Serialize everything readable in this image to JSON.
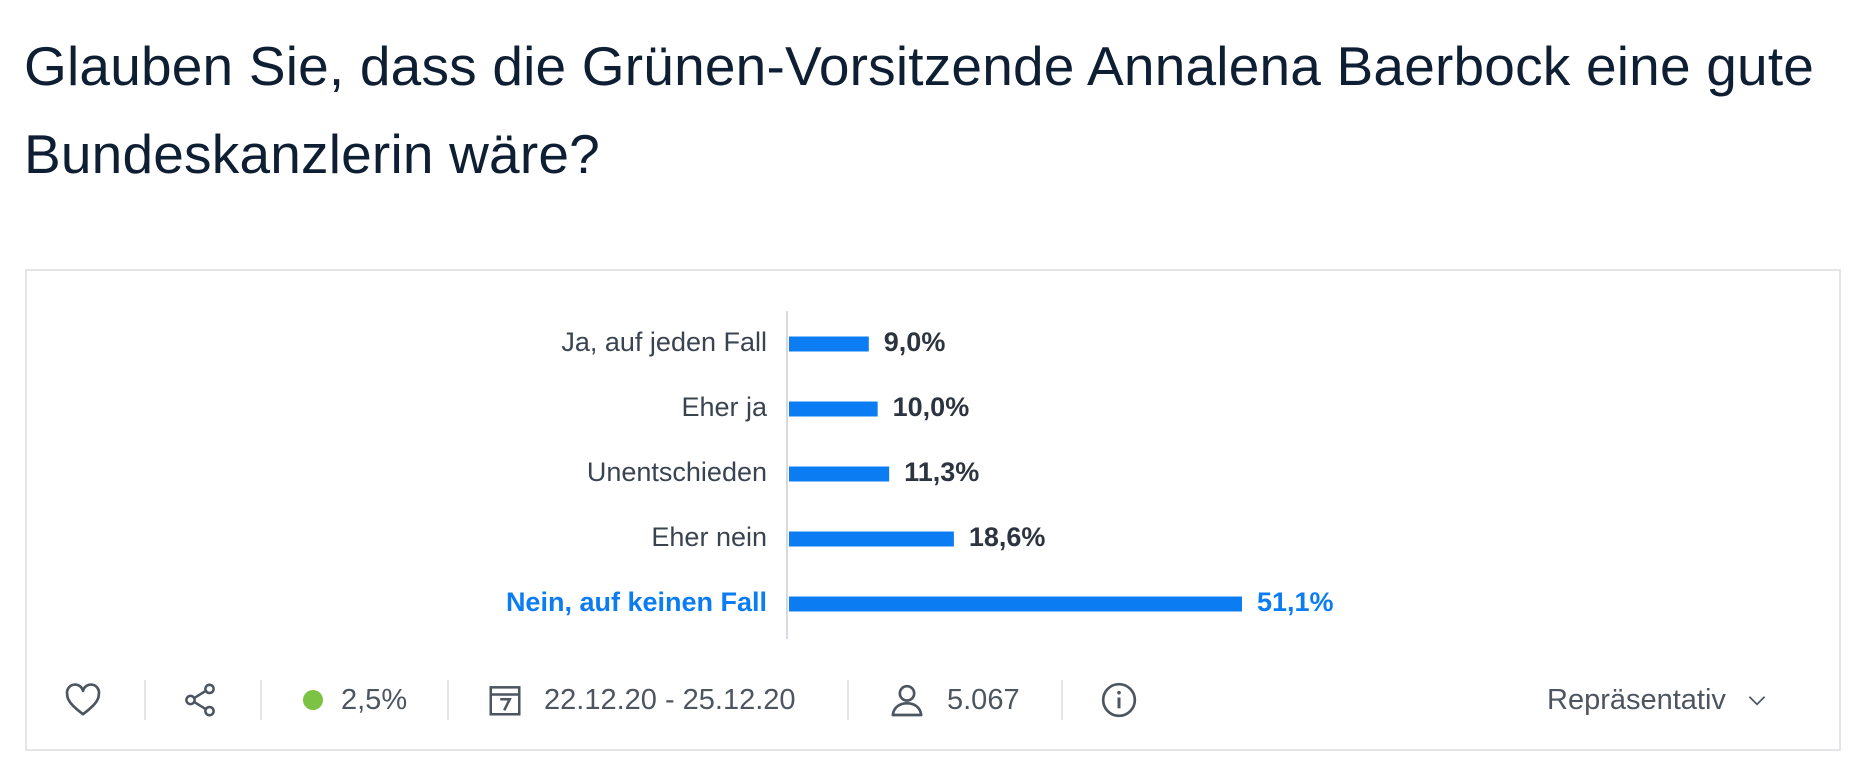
{
  "title": "Glauben Sie, dass die Grünen-Vorsitzende Annalena Baerbock eine gute Bundeskanzlerin wäre?",
  "chart_data": {
    "type": "bar",
    "orientation": "horizontal",
    "categories": [
      "Ja, auf jeden Fall",
      "Eher ja",
      "Unentschieden",
      "Eher nein",
      "Nein, auf keinen Fall"
    ],
    "values": [
      9.0,
      10.0,
      11.3,
      18.6,
      51.1
    ],
    "value_labels": [
      "9,0%",
      "10,0%",
      "11,3%",
      "18,6%",
      "51,1%"
    ],
    "highlighted_index": 4,
    "bar_color": "#0b7cf2",
    "highlight_color": "#0b7cf2",
    "xlim": [
      0,
      100
    ],
    "grid": false,
    "legend": "none"
  },
  "footer": {
    "margin_of_error": "2,5%",
    "margin_color": "#7cc243",
    "date_range": "22.12.20 - 25.12.20",
    "respondents": "5.067",
    "representative_label": "Repräsentativ",
    "icons": {
      "like": "heart-icon",
      "share": "share-icon",
      "date": "calendar-icon",
      "respondents": "user-icon",
      "info": "info-icon",
      "dropdown": "chevron-down-icon"
    }
  }
}
